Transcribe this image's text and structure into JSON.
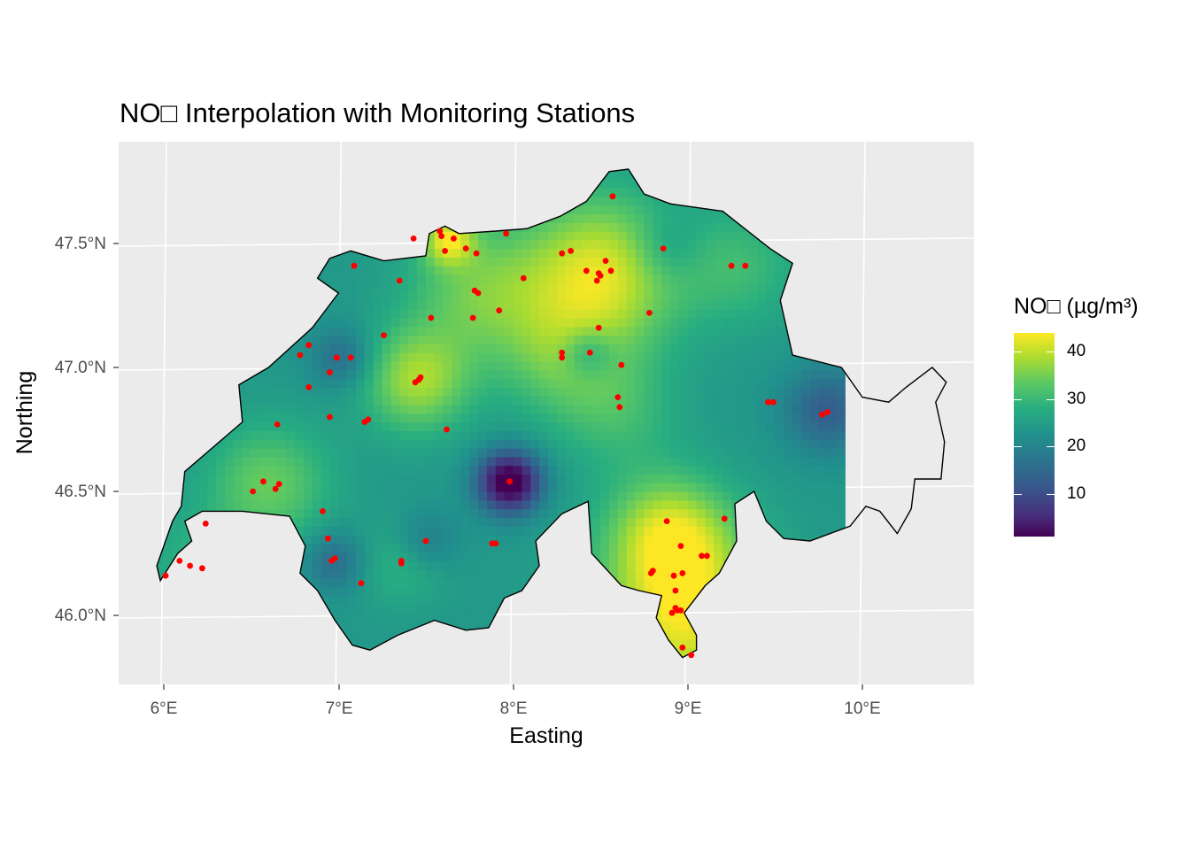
{
  "title": "NO□ Interpolation with Monitoring Stations",
  "x_axis": {
    "title": "Easting",
    "ticks": [
      "6°E",
      "7°E",
      "8°E",
      "9°E",
      "10°E"
    ]
  },
  "y_axis": {
    "title": "Northing",
    "ticks": [
      "46.0°N",
      "46.5°N",
      "47.0°N",
      "47.5°N"
    ]
  },
  "legend": {
    "title": "NO□ (µg/m³)",
    "ticks": [
      "10",
      "20",
      "30",
      "40"
    ],
    "range": [
      1,
      44
    ]
  },
  "colors": {
    "panel": "#ebebeb",
    "grid": "#ffffff",
    "station": "#ff0000",
    "outline": "#000000",
    "palette": "viridis"
  },
  "chart_data": {
    "type": "map",
    "title": "NO□ Interpolation with Monitoring Stations",
    "xlabel": "Easting",
    "ylabel": "Northing",
    "xlim": [
      5.75,
      10.6
    ],
    "ylim": [
      45.72,
      47.9
    ],
    "legend_placement": "right",
    "grid": true,
    "stations": [
      [
        6.01,
        46.16
      ],
      [
        6.09,
        46.22
      ],
      [
        6.15,
        46.2
      ],
      [
        6.22,
        46.19
      ],
      [
        6.24,
        46.37
      ],
      [
        6.51,
        46.5
      ],
      [
        6.57,
        46.54
      ],
      [
        6.64,
        46.51
      ],
      [
        6.66,
        46.53
      ],
      [
        6.65,
        46.77
      ],
      [
        6.78,
        47.05
      ],
      [
        6.83,
        47.09
      ],
      [
        6.83,
        46.92
      ],
      [
        6.95,
        46.8
      ],
      [
        6.95,
        46.98
      ],
      [
        6.99,
        47.04
      ],
      [
        7.07,
        47.04
      ],
      [
        7.09,
        47.41
      ],
      [
        7.15,
        46.78
      ],
      [
        7.17,
        46.79
      ],
      [
        7.26,
        47.13
      ],
      [
        7.35,
        47.35
      ],
      [
        7.44,
        46.94
      ],
      [
        7.46,
        46.95
      ],
      [
        7.47,
        46.96
      ],
      [
        7.53,
        47.2
      ],
      [
        7.43,
        47.52
      ],
      [
        7.58,
        47.55
      ],
      [
        7.59,
        47.53
      ],
      [
        7.61,
        47.47
      ],
      [
        7.66,
        47.52
      ],
      [
        7.73,
        47.48
      ],
      [
        7.79,
        47.46
      ],
      [
        7.96,
        47.54
      ],
      [
        7.62,
        46.75
      ],
      [
        7.77,
        47.2
      ],
      [
        7.78,
        47.31
      ],
      [
        7.8,
        47.3
      ],
      [
        7.92,
        47.23
      ],
      [
        8.06,
        47.36
      ],
      [
        8.28,
        47.46
      ],
      [
        8.33,
        47.47
      ],
      [
        8.42,
        47.39
      ],
      [
        8.48,
        47.35
      ],
      [
        8.49,
        47.38
      ],
      [
        8.5,
        47.37
      ],
      [
        8.53,
        47.43
      ],
      [
        8.56,
        47.39
      ],
      [
        8.57,
        47.69
      ],
      [
        8.49,
        47.16
      ],
      [
        8.28,
        47.06
      ],
      [
        8.28,
        47.04
      ],
      [
        8.44,
        47.06
      ],
      [
        8.62,
        47.01
      ],
      [
        8.78,
        47.22
      ],
      [
        8.86,
        47.48
      ],
      [
        9.25,
        47.41
      ],
      [
        9.33,
        47.41
      ],
      [
        8.6,
        46.88
      ],
      [
        8.61,
        46.84
      ],
      [
        9.46,
        46.86
      ],
      [
        9.49,
        46.86
      ],
      [
        9.77,
        46.81
      ],
      [
        9.8,
        46.82
      ],
      [
        7.98,
        46.54
      ],
      [
        6.91,
        46.42
      ],
      [
        6.94,
        46.31
      ],
      [
        6.96,
        46.22
      ],
      [
        6.98,
        46.23
      ],
      [
        7.13,
        46.13
      ],
      [
        7.36,
        46.22
      ],
      [
        7.36,
        46.21
      ],
      [
        7.5,
        46.3
      ],
      [
        7.88,
        46.29
      ],
      [
        7.9,
        46.29
      ],
      [
        8.79,
        46.17
      ],
      [
        8.8,
        46.18
      ],
      [
        8.88,
        46.38
      ],
      [
        8.96,
        46.28
      ],
      [
        9.08,
        46.24
      ],
      [
        9.11,
        46.24
      ],
      [
        9.21,
        46.39
      ],
      [
        8.92,
        46.16
      ],
      [
        8.97,
        46.17
      ],
      [
        8.93,
        46.1
      ],
      [
        8.93,
        46.03
      ],
      [
        8.94,
        46.02
      ],
      [
        8.96,
        46.02
      ],
      [
        8.91,
        46.01
      ],
      [
        8.97,
        45.87
      ],
      [
        9.02,
        45.84
      ]
    ],
    "hotspots": [
      [
        8.5,
        47.38,
        18,
        0.45
      ],
      [
        7.45,
        46.95,
        14,
        0.3
      ],
      [
        7.8,
        47.3,
        10,
        0.4
      ],
      [
        8.93,
        46.07,
        12,
        0.5
      ],
      [
        8.96,
        46.28,
        10,
        0.35
      ],
      [
        9.0,
        45.87,
        8,
        0.4
      ],
      [
        6.6,
        46.53,
        10,
        0.35
      ],
      [
        8.28,
        47.04,
        8,
        0.35
      ],
      [
        9.3,
        47.41,
        6,
        0.35
      ],
      [
        7.63,
        47.52,
        16,
        0.15
      ],
      [
        8.85,
        46.38,
        6,
        0.3
      ],
      [
        8.6,
        46.82,
        6,
        0.35
      ],
      [
        7.36,
        46.21,
        5,
        0.25
      ],
      [
        6.2,
        46.2,
        5,
        0.3
      ],
      [
        7.98,
        46.54,
        -26,
        0.18
      ],
      [
        9.8,
        46.83,
        -10,
        0.25
      ],
      [
        7.02,
        47.04,
        -8,
        0.18
      ],
      [
        6.98,
        46.22,
        -8,
        0.18
      ],
      [
        8.43,
        47.06,
        -8,
        0.15
      ],
      [
        7.5,
        46.3,
        -6,
        0.18
      ],
      [
        8.87,
        47.48,
        -5,
        0.2
      ]
    ],
    "base_value": 24
  }
}
